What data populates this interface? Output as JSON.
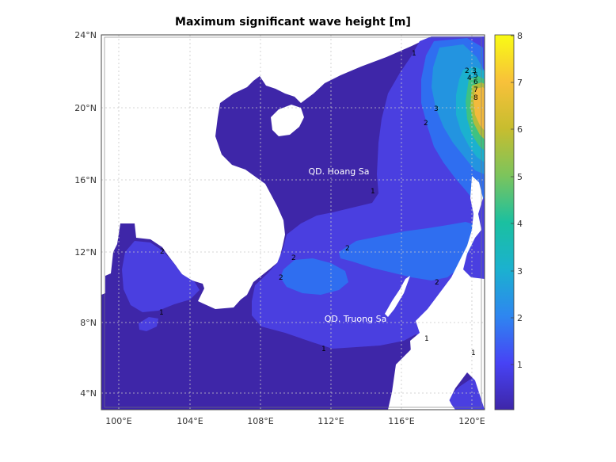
{
  "title": "Maximum significant wave height [m]",
  "map": {
    "lon_ticks": [
      "100°E",
      "104°E",
      "108°E",
      "112°E",
      "116°E",
      "120°E"
    ],
    "lat_ticks": [
      "24°N",
      "20°N",
      "16°N",
      "12°N",
      "8°N",
      "4°N"
    ],
    "lon_range": [
      99.2,
      121.0
    ],
    "lat_range": [
      3.1,
      24.0
    ],
    "grid": true,
    "place_labels": [
      "QD. Hoang Sa",
      "QD. Truong Sa"
    ],
    "contour_labels": [
      "1",
      "2",
      "3",
      "4",
      "5",
      "6",
      "7",
      "8"
    ]
  },
  "colorbar": {
    "min": 0,
    "max": 8,
    "ticks": [
      "1",
      "2",
      "3",
      "4",
      "5",
      "6",
      "7",
      "8"
    ],
    "colormap": [
      "#3e26a8",
      "#4743f5",
      "#2e86f0",
      "#1bb1cf",
      "#3ec282",
      "#aebd3c",
      "#f3ba3c",
      "#f9fb14"
    ]
  },
  "colors": {
    "land": "#ffffff",
    "level_0_1": "#3e26a8",
    "level_1_2": "#4a3fe0",
    "level_2_3": "#2f6ef0",
    "level_3_4": "#2394e0"
  }
}
